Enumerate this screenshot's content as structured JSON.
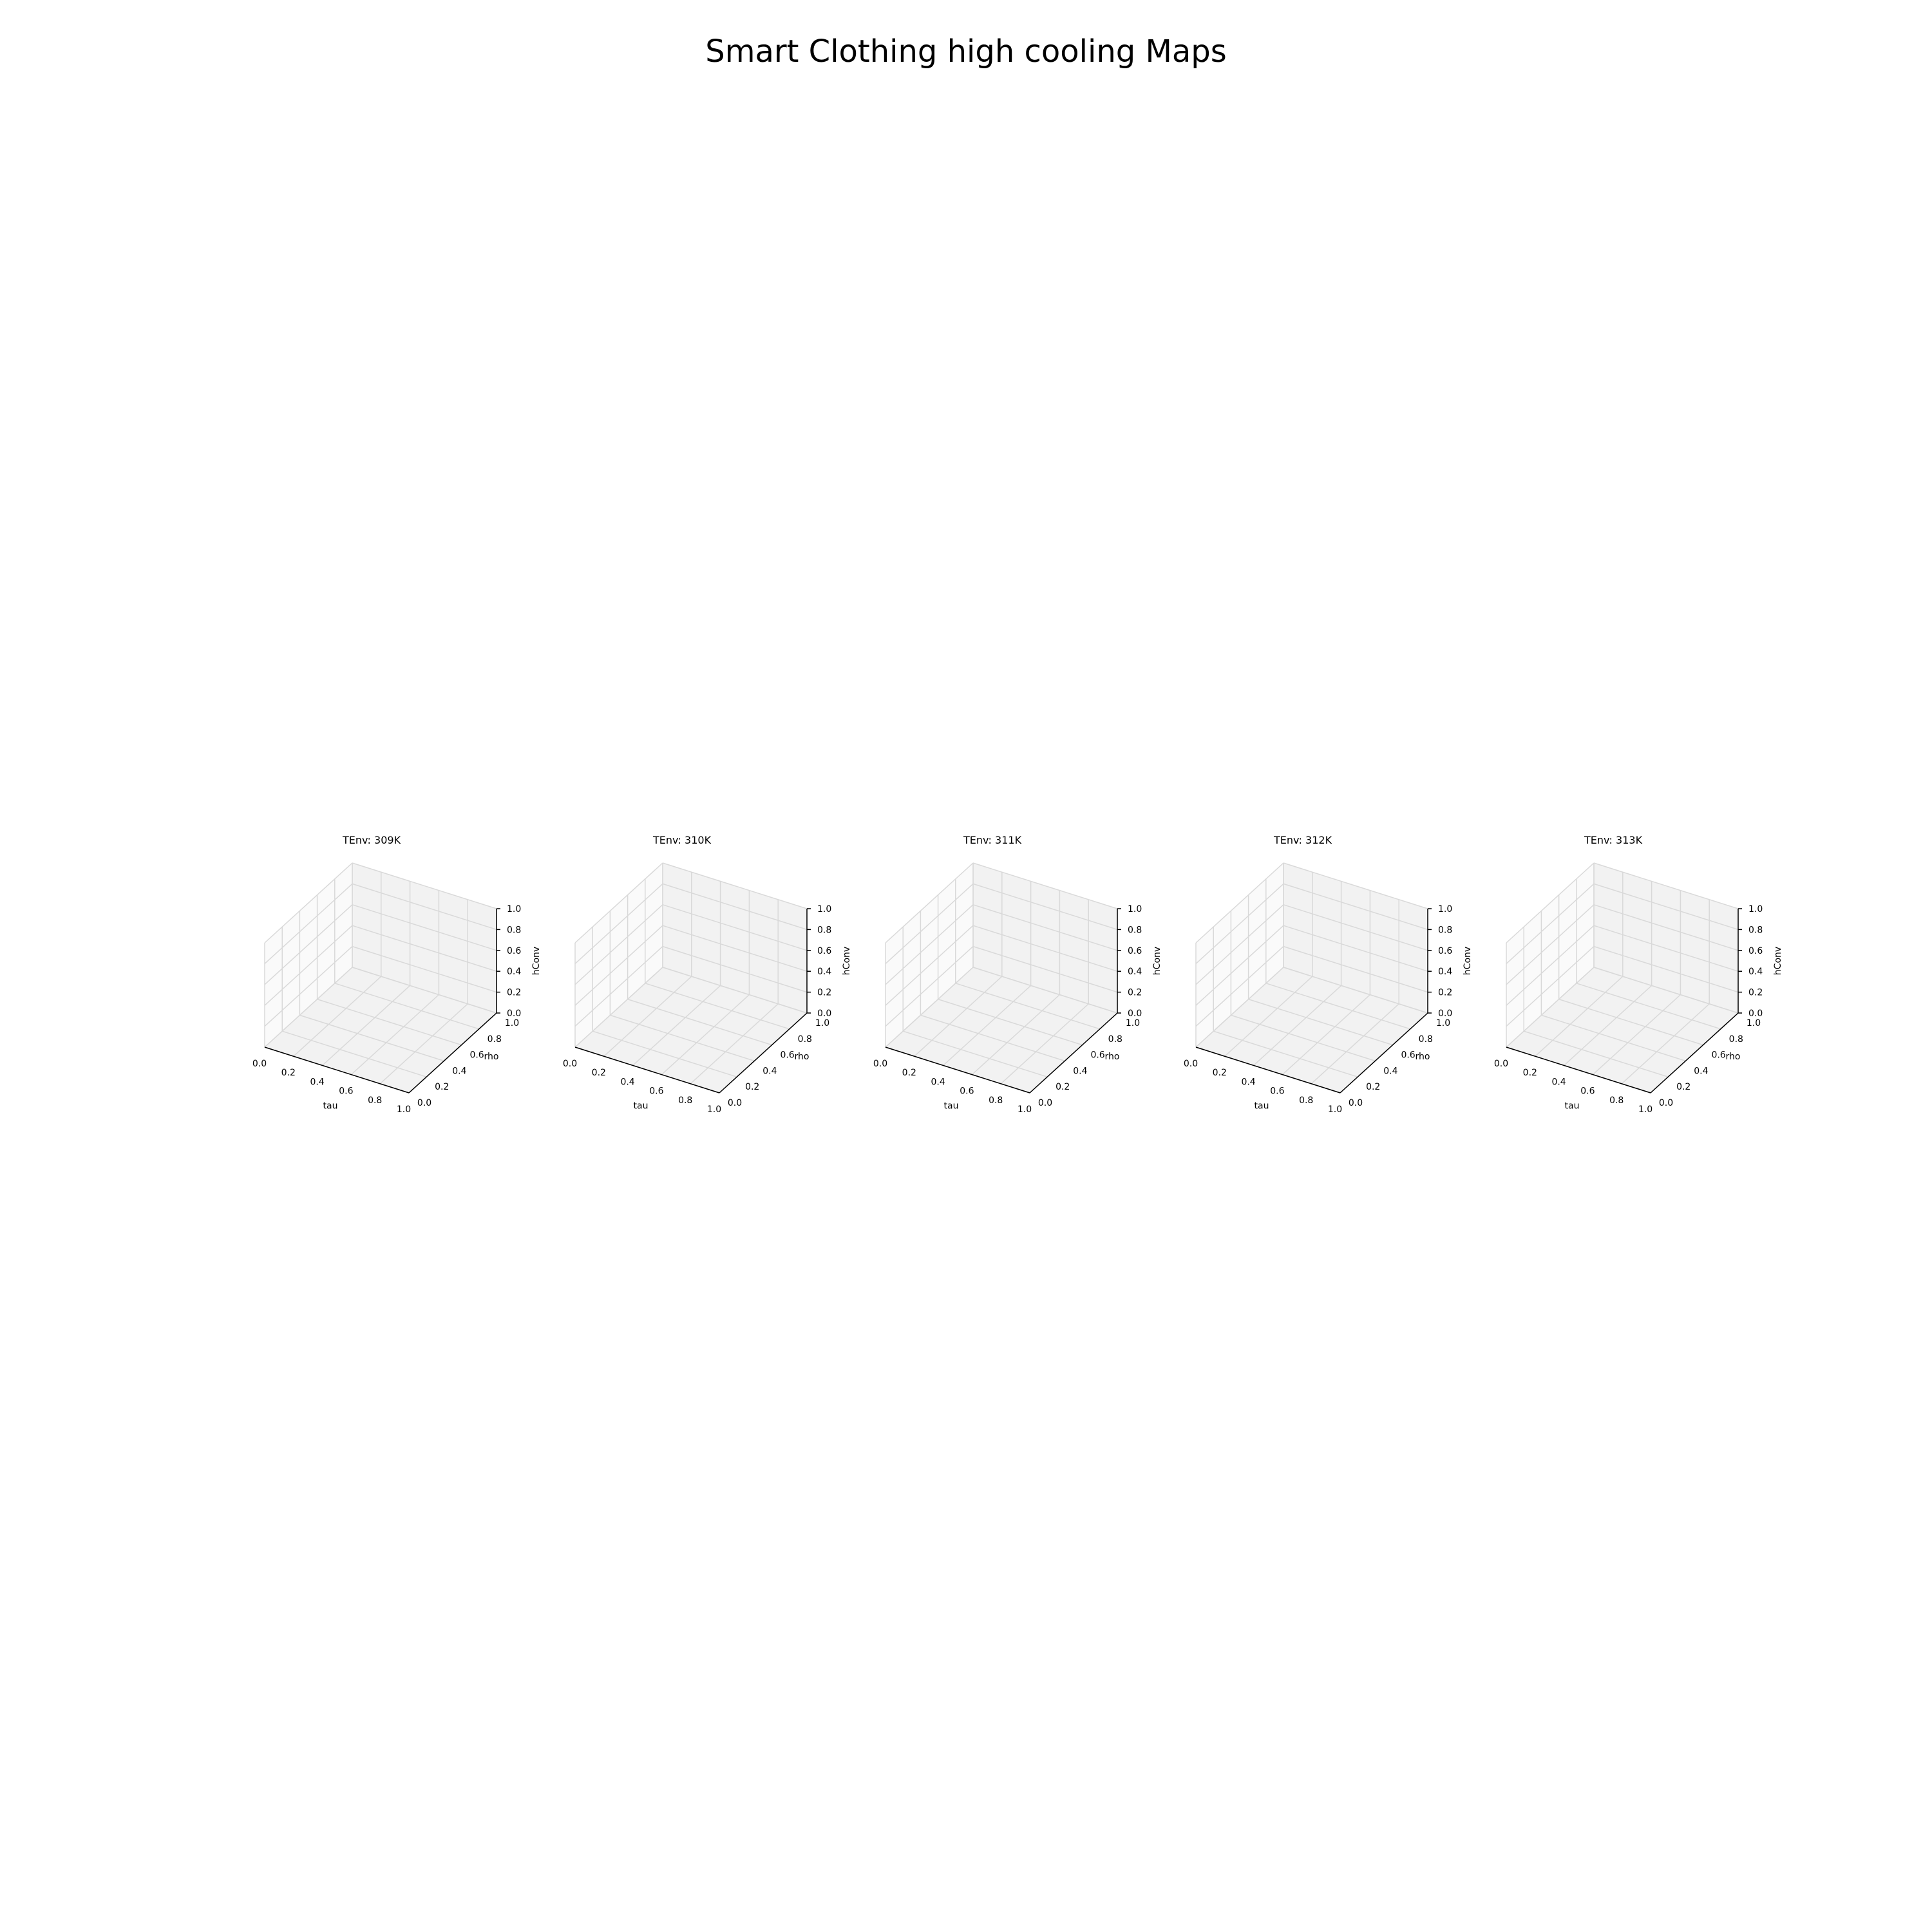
{
  "figure": {
    "title": "Smart Clothing high cooling Maps"
  },
  "chart_data": [
    {
      "type": "surface3d",
      "title": "TEnv: 309K",
      "xlabel": "tau",
      "ylabel": "rho",
      "zlabel": "hConv",
      "xlim": [
        0.0,
        1.0
      ],
      "ylim": [
        0.0,
        1.0
      ],
      "zlim": [
        0.0,
        1.0
      ],
      "xticks": [
        "0.0",
        "0.2",
        "0.4",
        "0.6",
        "0.8",
        "1.0"
      ],
      "yticks": [
        "0.0",
        "0.2",
        "0.4",
        "0.6",
        "0.8",
        "1.0"
      ],
      "zticks": [
        "0.0",
        "0.2",
        "0.4",
        "0.6",
        "0.8",
        "1.0"
      ],
      "grid": true,
      "series": []
    },
    {
      "type": "surface3d",
      "title": "TEnv: 310K",
      "xlabel": "tau",
      "ylabel": "rho",
      "zlabel": "hConv",
      "xlim": [
        0.0,
        1.0
      ],
      "ylim": [
        0.0,
        1.0
      ],
      "zlim": [
        0.0,
        1.0
      ],
      "xticks": [
        "0.0",
        "0.2",
        "0.4",
        "0.6",
        "0.8",
        "1.0"
      ],
      "yticks": [
        "0.0",
        "0.2",
        "0.4",
        "0.6",
        "0.8",
        "1.0"
      ],
      "zticks": [
        "0.0",
        "0.2",
        "0.4",
        "0.6",
        "0.8",
        "1.0"
      ],
      "grid": true,
      "series": []
    },
    {
      "type": "surface3d",
      "title": "TEnv: 311K",
      "xlabel": "tau",
      "ylabel": "rho",
      "zlabel": "hConv",
      "xlim": [
        0.0,
        1.0
      ],
      "ylim": [
        0.0,
        1.0
      ],
      "zlim": [
        0.0,
        1.0
      ],
      "xticks": [
        "0.0",
        "0.2",
        "0.4",
        "0.6",
        "0.8",
        "1.0"
      ],
      "yticks": [
        "0.0",
        "0.2",
        "0.4",
        "0.6",
        "0.8",
        "1.0"
      ],
      "zticks": [
        "0.0",
        "0.2",
        "0.4",
        "0.6",
        "0.8",
        "1.0"
      ],
      "grid": true,
      "series": []
    },
    {
      "type": "surface3d",
      "title": "TEnv: 312K",
      "xlabel": "tau",
      "ylabel": "rho",
      "zlabel": "hConv",
      "xlim": [
        0.0,
        1.0
      ],
      "ylim": [
        0.0,
        1.0
      ],
      "zlim": [
        0.0,
        1.0
      ],
      "xticks": [
        "0.0",
        "0.2",
        "0.4",
        "0.6",
        "0.8",
        "1.0"
      ],
      "yticks": [
        "0.0",
        "0.2",
        "0.4",
        "0.6",
        "0.8",
        "1.0"
      ],
      "zticks": [
        "0.0",
        "0.2",
        "0.4",
        "0.6",
        "0.8",
        "1.0"
      ],
      "grid": true,
      "series": []
    },
    {
      "type": "surface3d",
      "title": "TEnv: 313K",
      "xlabel": "tau",
      "ylabel": "rho",
      "zlabel": "hConv",
      "xlim": [
        0.0,
        1.0
      ],
      "ylim": [
        0.0,
        1.0
      ],
      "zlim": [
        0.0,
        1.0
      ],
      "xticks": [
        "0.0",
        "0.2",
        "0.4",
        "0.6",
        "0.8",
        "1.0"
      ],
      "yticks": [
        "0.0",
        "0.2",
        "0.4",
        "0.6",
        "0.8",
        "1.0"
      ],
      "zticks": [
        "0.0",
        "0.2",
        "0.4",
        "0.6",
        "0.8",
        "1.0"
      ],
      "grid": true,
      "series": []
    }
  ],
  "colors": {
    "pane_back": "#f2f2f2",
    "pane_left": "#fafafa",
    "pane_floor": "#f2f2f2",
    "grid": "#d9d9d9",
    "axis_line": "#000000"
  }
}
